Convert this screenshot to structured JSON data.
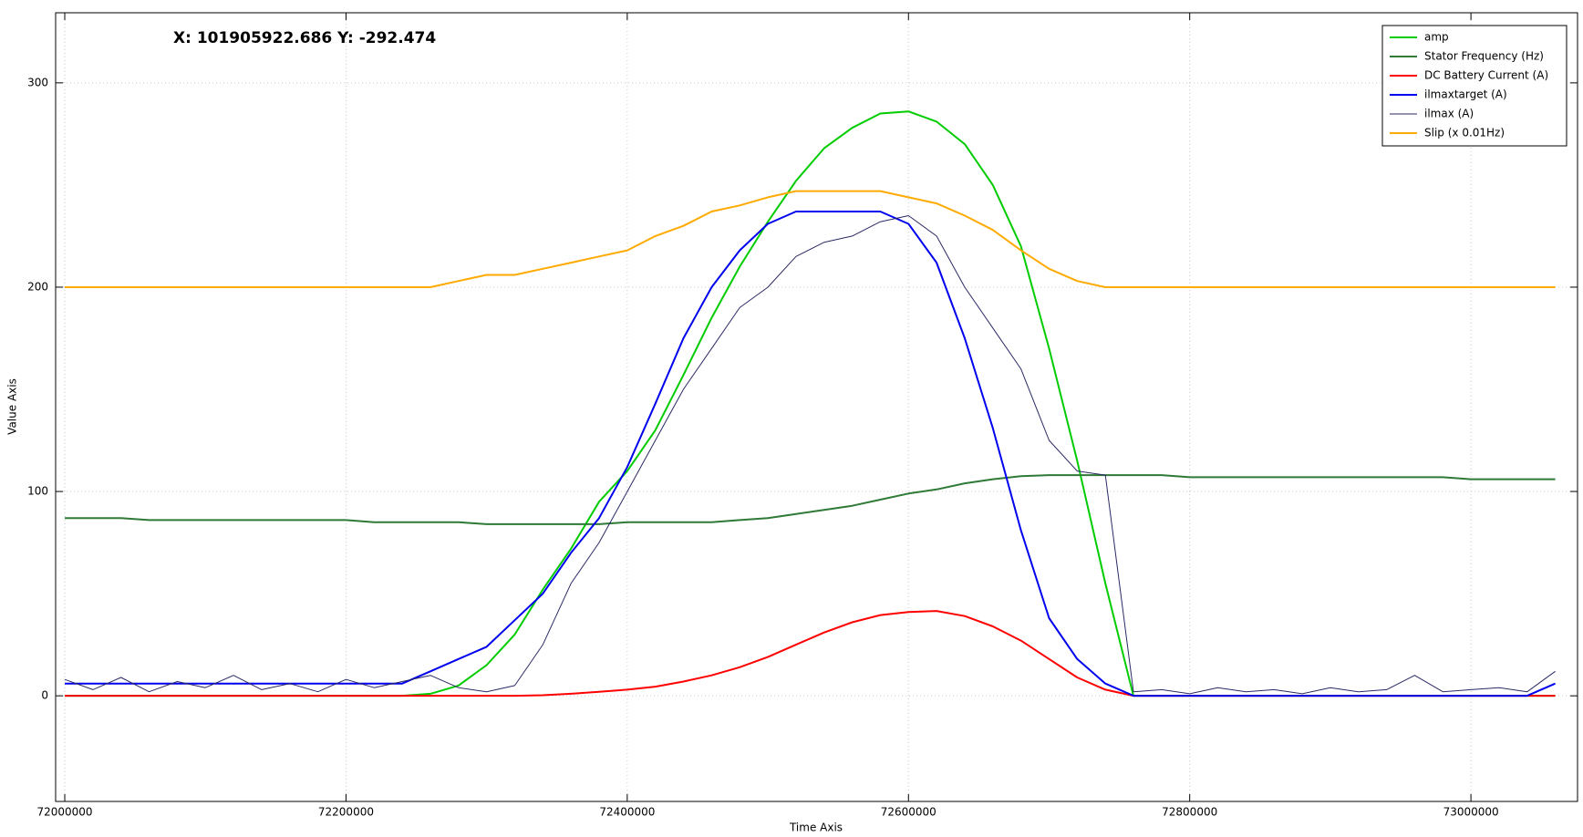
{
  "chart_data": {
    "type": "line",
    "annotation": "X: 101905922.686 Y: -292.474",
    "x_label": "Time Axis",
    "y_label": "Value Axis",
    "xlim": [
      71993500,
      73075800
    ],
    "ylim": [
      -51.7,
      334.3
    ],
    "xticks": [
      72000000,
      72200000,
      72400000,
      72600000,
      72800000,
      73000000
    ],
    "yticks": [
      0,
      100,
      200,
      300
    ],
    "grid": true,
    "legend": "upper right",
    "x": [
      72000000,
      72020000,
      72040000,
      72060000,
      72080000,
      72100000,
      72120000,
      72140000,
      72160000,
      72180000,
      72200000,
      72220000,
      72240000,
      72260000,
      72280000,
      72300000,
      72320000,
      72340000,
      72360000,
      72380000,
      72400000,
      72420000,
      72440000,
      72460000,
      72480000,
      72500000,
      72520000,
      72540000,
      72560000,
      72580000,
      72600000,
      72620000,
      72640000,
      72660000,
      72680000,
      72700000,
      72720000,
      72740000,
      72760000,
      72780000,
      72800000,
      72820000,
      72840000,
      72860000,
      72880000,
      72900000,
      72920000,
      72940000,
      72960000,
      72980000,
      73000000,
      73020000,
      73040000,
      73060000
    ],
    "series": [
      {
        "name": "amp",
        "color": "#00cc00",
        "values": [
          0,
          0,
          0,
          0,
          0,
          0,
          0,
          0,
          0,
          0,
          0,
          0,
          0,
          1,
          5,
          15,
          30,
          52,
          72,
          95,
          110,
          130,
          157,
          185,
          210,
          232,
          252,
          268,
          278,
          285,
          286,
          281,
          270,
          250,
          220,
          170,
          115,
          55,
          0,
          0,
          0,
          0,
          0,
          0,
          0,
          0,
          0,
          0,
          0,
          0,
          0,
          0,
          0,
          0
        ]
      },
      {
        "name": "Stator Frequency (Hz)",
        "color": "#2e7a36",
        "values": [
          87,
          87,
          87,
          86,
          86,
          86,
          86,
          86,
          86,
          86,
          86,
          85,
          85,
          85,
          85,
          84,
          84,
          84,
          84,
          84,
          85,
          85,
          85,
          85,
          86,
          87,
          89,
          91,
          93,
          96,
          99,
          101,
          104,
          106,
          107.5,
          108,
          108,
          108,
          108,
          108,
          107,
          107,
          107,
          107,
          107,
          107,
          107,
          107,
          107,
          107,
          106,
          106,
          106,
          106
        ]
      },
      {
        "name": "DC Battery Current (A)",
        "color": "#ff0000",
        "values": [
          0,
          0,
          0,
          0,
          0,
          0,
          0,
          0,
          0,
          0,
          0,
          0,
          0,
          0,
          0,
          0,
          0,
          0.3,
          1,
          2,
          3,
          4.5,
          7,
          10,
          14,
          19,
          25,
          31,
          36,
          39.5,
          41,
          41.5,
          39,
          34,
          27,
          18,
          9,
          3,
          0,
          0,
          0,
          0,
          0,
          0,
          0,
          0,
          0,
          0,
          0,
          0,
          0,
          0,
          0,
          0
        ]
      },
      {
        "name": "ilmaxtarget (A)",
        "color": "#0000ee",
        "values": [
          6,
          6,
          6,
          6,
          6,
          6,
          6,
          6,
          6,
          6,
          6,
          6,
          6,
          12,
          18,
          24,
          37,
          50,
          70,
          87,
          112,
          143,
          175,
          200,
          218,
          231,
          237,
          237,
          237,
          237,
          231,
          212,
          175,
          131,
          81,
          38,
          18,
          6,
          0,
          0,
          0,
          0,
          0,
          0,
          0,
          0,
          0,
          0,
          0,
          0,
          0,
          0,
          0,
          6
        ]
      },
      {
        "name": "ilmax (A)",
        "color": "#2a2a66",
        "values": [
          8,
          3,
          9,
          2,
          7,
          4,
          10,
          3,
          6,
          2,
          8,
          4,
          7,
          10,
          4,
          2,
          5,
          25,
          55,
          75,
          100,
          125,
          150,
          170,
          190,
          200,
          215,
          222,
          225,
          232,
          235,
          225,
          200,
          180,
          160,
          125,
          110,
          108,
          2,
          3,
          1,
          4,
          2,
          3,
          1,
          4,
          2,
          3,
          10,
          2,
          3,
          4,
          2,
          12
        ]
      },
      {
        "name": "Slip (x 0.01Hz)",
        "color": "#ffaa00",
        "values": [
          200,
          200,
          200,
          200,
          200,
          200,
          200,
          200,
          200,
          200,
          200,
          200,
          200,
          200,
          203,
          206,
          206,
          209,
          212,
          215,
          218,
          225,
          230,
          237,
          240,
          244,
          247,
          247,
          247,
          247,
          244,
          241,
          235,
          228,
          218,
          209,
          203,
          200,
          200,
          200,
          200,
          200,
          200,
          200,
          200,
          200,
          200,
          200,
          200,
          200,
          200,
          200,
          200,
          200
        ]
      }
    ]
  }
}
